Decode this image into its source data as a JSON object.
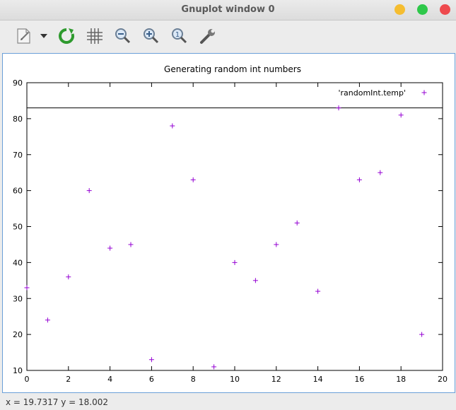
{
  "window": {
    "title": "Gnuplot window 0",
    "buttons": [
      {
        "name": "minimize-button",
        "color": "#f5bd30"
      },
      {
        "name": "maximize-button",
        "color": "#2ec84a"
      },
      {
        "name": "close-button",
        "color": "#ee4a4e"
      }
    ]
  },
  "toolbar": {
    "items": [
      {
        "name": "export-icon"
      },
      {
        "name": "dropdown-arrow-icon"
      },
      {
        "name": "replot-icon"
      },
      {
        "name": "grid-icon"
      },
      {
        "name": "zoom-out-icon"
      },
      {
        "name": "zoom-in-icon"
      },
      {
        "name": "zoom-reset-icon"
      },
      {
        "name": "settings-wrench-icon"
      }
    ]
  },
  "status": {
    "text": "x = 19.7317 y = 18.002"
  },
  "chart_data": {
    "type": "scatter",
    "title": "Generating random int numbers",
    "xlabel": "",
    "ylabel": "",
    "xlim": [
      0,
      20
    ],
    "ylim": [
      10,
      90
    ],
    "xticks": [
      0,
      2,
      4,
      6,
      8,
      10,
      12,
      14,
      16,
      18,
      20
    ],
    "yticks": [
      10,
      20,
      30,
      40,
      50,
      60,
      70,
      80,
      90
    ],
    "grid": false,
    "legend": "top-right",
    "series": [
      {
        "name": "'randomInt.temp'",
        "color": "#9400d3",
        "marker": "plus",
        "x": [
          0,
          1,
          2,
          3,
          4,
          5,
          6,
          7,
          8,
          9,
          10,
          11,
          12,
          13,
          14,
          15,
          16,
          17,
          18,
          19
        ],
        "y": [
          33,
          24,
          36,
          60,
          44,
          45,
          13,
          78,
          63,
          11,
          40,
          35,
          45,
          51,
          32,
          83,
          63,
          65,
          81,
          20
        ]
      }
    ],
    "hline": 83
  }
}
